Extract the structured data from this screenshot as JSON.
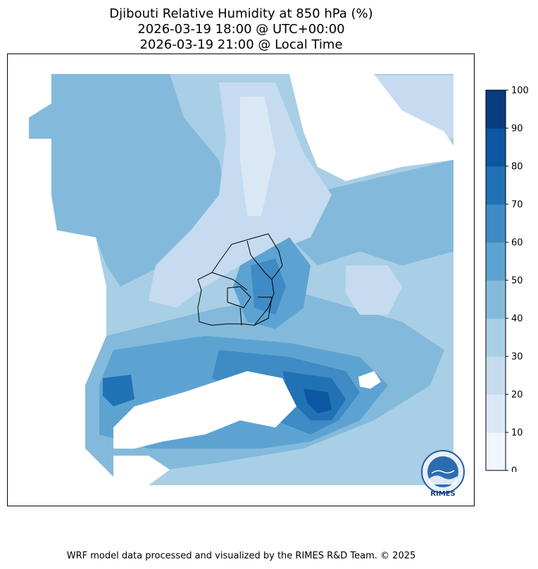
{
  "chart_data": {
    "type": "heatmap",
    "title_lines": [
      "Djibouti Relative Humidity at 850 hPa (%)",
      "2026-03-19 18:00 @ UTC+00:00",
      "2026-03-19 21:00 @ Local Time"
    ],
    "variable": "Relative Humidity at 850 hPa",
    "unit": "%",
    "colorbar": {
      "levels": [
        0,
        10,
        20,
        30,
        40,
        50,
        60,
        70,
        80,
        90,
        100
      ],
      "tick_labels": [
        "0",
        "10",
        "20",
        "30",
        "40",
        "50",
        "60",
        "70",
        "80",
        "90",
        "100"
      ],
      "colors": [
        "#f0f6fd",
        "#dae8f6",
        "#c6dbef",
        "#a8cfe5",
        "#83badb",
        "#5da3d2",
        "#3e8bc5",
        "#2171b5",
        "#0d56a1",
        "#083d7f"
      ]
    },
    "orientation": "vertical",
    "legend_position": "right"
  },
  "footer_text": "WRF model data processed and visualized by the RIMES R&D Team. © 2025",
  "logo_text": "RIMES"
}
